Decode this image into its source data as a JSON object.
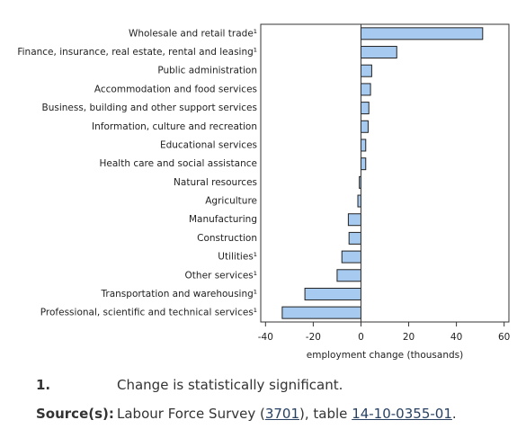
{
  "chart_data": {
    "type": "hbar",
    "categories": [
      "Wholesale and retail trade¹",
      "Finance, insurance, real estate, rental and leasing¹",
      "Public administration",
      "Accommodation and food services",
      "Business, building and other support services",
      "Information, culture and recreation",
      "Educational services",
      "Health care and social assistance",
      "Natural resources",
      "Agriculture",
      "Manufacturing",
      "Construction",
      "Utilities¹",
      "Other services¹",
      "Transportation and warehousing¹",
      "Professional, scientific and technical services¹"
    ],
    "values": [
      51,
      15,
      4.5,
      4,
      3.3,
      3,
      2,
      2,
      -0.7,
      -1.3,
      -5.3,
      -5,
      -8,
      -10,
      -23.5,
      -33
    ],
    "color": "#a6caf0",
    "xlabel": "employment change (thousands)",
    "xlim": [
      -42,
      62
    ],
    "xticks": [
      -40,
      -20,
      0,
      20,
      40,
      60
    ]
  },
  "footnotes": {
    "number": "1.",
    "text": "Change is statistically significant."
  },
  "source": {
    "label": "Source(s):",
    "parts": [
      "Labour Force Survey (",
      "3701",
      "), table ",
      "14-10-0355-01",
      "."
    ]
  }
}
